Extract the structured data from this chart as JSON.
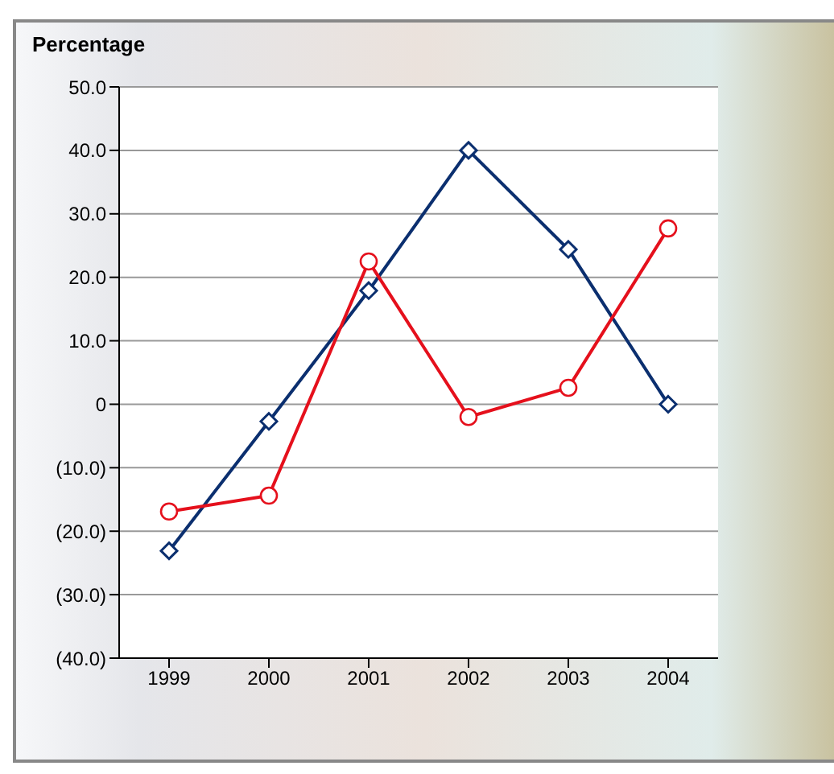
{
  "chart_data": {
    "type": "line",
    "ylabel": "Percentage",
    "categories": [
      "1999",
      "2000",
      "2001",
      "2002",
      "2003",
      "2004"
    ],
    "series": [
      {
        "color": "#0b2f6f",
        "marker": "diamond",
        "values": [
          -23.1,
          -2.7,
          17.9,
          40.0,
          24.4,
          0.0
        ]
      },
      {
        "color": "#e5101c",
        "marker": "circle",
        "values": [
          -16.9,
          -14.4,
          22.5,
          -2.0,
          2.6,
          27.7
        ]
      }
    ],
    "ylim": [
      -40,
      50
    ],
    "yticks": [
      {
        "value": -40,
        "label": "(40.0)"
      },
      {
        "value": -30,
        "label": "(30.0)"
      },
      {
        "value": -20,
        "label": "(20.0)"
      },
      {
        "value": -10,
        "label": "(10.0)"
      },
      {
        "value": 0,
        "label": "0"
      },
      {
        "value": 10,
        "label": "10.0"
      },
      {
        "value": 20,
        "label": "20.0"
      },
      {
        "value": 30,
        "label": "30.0"
      },
      {
        "value": 40,
        "label": "40.0"
      },
      {
        "value": 50,
        "label": "50.0"
      }
    ],
    "grid": "y",
    "legend": false,
    "line_style": "solid"
  }
}
